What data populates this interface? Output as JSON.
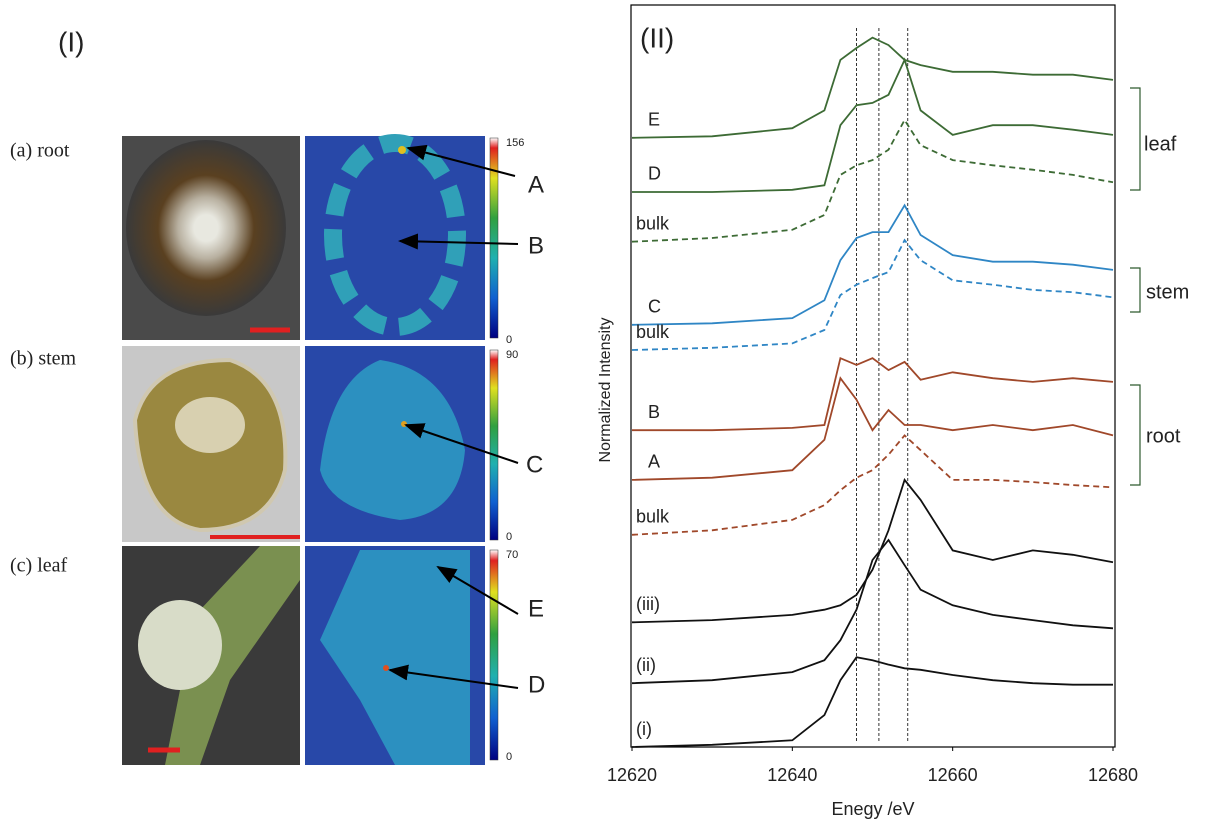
{
  "panel_I": {
    "label": "(I)",
    "rows": [
      {
        "label": "(a)  root",
        "colorbar_max": 156,
        "colorbar_min": 0,
        "points": [
          "A",
          "B"
        ]
      },
      {
        "label": "(b)  stem",
        "colorbar_max": 90,
        "colorbar_min": 0,
        "points": [
          "C"
        ]
      },
      {
        "label": "(c)  leaf",
        "colorbar_max": 70,
        "colorbar_min": 0,
        "points": [
          "E",
          "D"
        ]
      }
    ]
  },
  "chart_data": {
    "type": "line",
    "panel_label": "(II)",
    "xlabel": "Enegy /eV",
    "ylabel": "Normalized Intensity",
    "x": [
      12620,
      12630,
      12640,
      12644,
      12646,
      12648,
      12650,
      12652,
      12654,
      12656,
      12660,
      12665,
      12670,
      12675,
      12680
    ],
    "xlim": [
      12620,
      12680
    ],
    "xticks": [
      12620,
      12640,
      12660,
      12680
    ],
    "ylim": [
      0,
      100
    ],
    "vlines": [
      12648,
      12650.8,
      12654.4
    ],
    "series": [
      {
        "name": "E",
        "color": "#3d6b35",
        "dashed": false,
        "values": [
          82.1,
          82.3,
          83.4,
          85.8,
          92.6,
          94.2,
          95.6,
          94.6,
          92.6,
          91.9,
          91.0,
          91.0,
          90.6,
          90.6,
          89.9
        ]
      },
      {
        "name": "D",
        "color": "#3d6b35",
        "dashed": false,
        "values": [
          74.8,
          74.8,
          75.1,
          75.7,
          83.8,
          86.5,
          86.8,
          87.9,
          92.6,
          85.8,
          82.5,
          83.8,
          83.8,
          83.2,
          82.5
        ]
      },
      {
        "name": "bulk",
        "color": "#3d6b35",
        "dashed": true,
        "values": [
          68.1,
          68.6,
          69.7,
          71.7,
          77.1,
          78.4,
          79.1,
          80.5,
          84.5,
          81.1,
          79.1,
          78.4,
          77.8,
          77.1,
          76.1
        ]
      },
      {
        "name": "C",
        "color": "#2f86c5",
        "dashed": false,
        "values": [
          56.9,
          57.1,
          57.8,
          60.2,
          65.6,
          68.6,
          69.4,
          69.4,
          73.0,
          69.0,
          66.3,
          65.4,
          65.4,
          65.0,
          64.3
        ]
      },
      {
        "name": "bulk",
        "color": "#2f86c5",
        "dashed": true,
        "values": [
          53.5,
          53.8,
          54.4,
          56.2,
          60.9,
          62.3,
          63.2,
          64.0,
          68.3,
          65.6,
          62.9,
          62.3,
          61.6,
          61.3,
          60.6
        ]
      },
      {
        "name": "B",
        "color": "#a0482a",
        "dashed": false,
        "values": [
          42.7,
          42.7,
          43.0,
          43.4,
          52.4,
          51.5,
          52.4,
          50.8,
          51.9,
          49.5,
          50.5,
          49.7,
          49.2,
          49.7,
          49.2
        ]
      },
      {
        "name": "A",
        "color": "#a0482a",
        "dashed": false,
        "values": [
          36.0,
          36.3,
          37.3,
          41.4,
          49.7,
          46.8,
          42.7,
          45.4,
          43.4,
          43.4,
          42.7,
          43.4,
          42.7,
          43.4,
          42.0
        ]
      },
      {
        "name": "bulk",
        "color": "#a0482a",
        "dashed": true,
        "values": [
          28.6,
          29.2,
          30.6,
          32.6,
          34.6,
          36.3,
          37.3,
          39.4,
          42.0,
          40.0,
          36.0,
          36.0,
          35.7,
          35.3,
          35.0
        ]
      },
      {
        "name": "(iii)",
        "color": "#111111",
        "dashed": false,
        "values": [
          16.8,
          17.1,
          17.8,
          18.5,
          19.1,
          20.5,
          23.9,
          29.2,
          36.0,
          33.3,
          26.5,
          25.2,
          26.5,
          25.9,
          24.9
        ]
      },
      {
        "name": "(ii)",
        "color": "#111111",
        "dashed": false,
        "values": [
          8.6,
          9.0,
          10.1,
          11.7,
          14.4,
          18.5,
          25.2,
          27.9,
          24.5,
          21.2,
          19.1,
          17.8,
          17.1,
          16.4,
          16.0
        ]
      },
      {
        "name": "(i)",
        "color": "#111111",
        "dashed": false,
        "values": [
          0,
          0.3,
          0.9,
          4.3,
          9.0,
          12.1,
          11.7,
          11.1,
          10.6,
          10.4,
          9.7,
          9.0,
          8.6,
          8.4,
          8.4
        ]
      }
    ],
    "groups": [
      {
        "label": "leaf"
      },
      {
        "label": "stem"
      },
      {
        "label": "root"
      }
    ]
  }
}
